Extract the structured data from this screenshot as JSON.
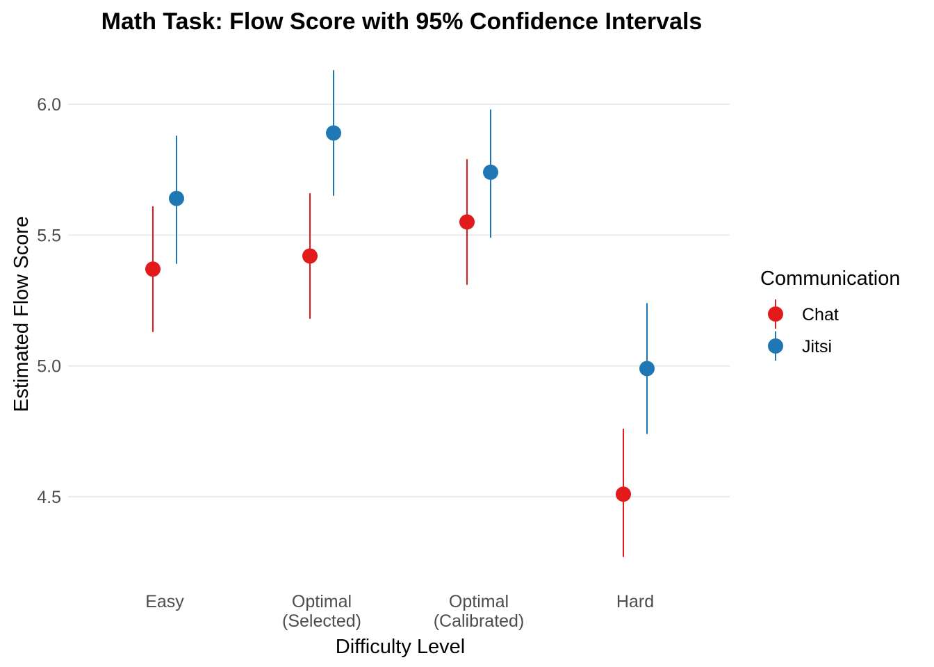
{
  "chart_data": {
    "type": "scatter",
    "title": "Math Task: Flow Score with 95% Confidence Intervals",
    "xlabel": "Difficulty Level",
    "ylabel": "Estimated Flow Score",
    "categories": [
      [
        "Easy"
      ],
      [
        "Optimal",
        "(Selected)"
      ],
      [
        "Optimal",
        "(Calibrated)"
      ],
      [
        "Hard"
      ]
    ],
    "y_ticks": [
      "4.5",
      "5.0",
      "5.5",
      "6.0"
    ],
    "ylim": [
      4.2,
      6.18
    ],
    "grid": true,
    "legend": {
      "title": "Communication",
      "position": "right"
    },
    "series": [
      {
        "name": "Chat",
        "color": "#e31a1c",
        "values": [
          5.37,
          5.42,
          5.55,
          4.51
        ],
        "lower": [
          5.13,
          5.18,
          5.31,
          4.27
        ],
        "upper": [
          5.61,
          5.66,
          5.79,
          4.76
        ]
      },
      {
        "name": "Jitsi",
        "color": "#1f78b4",
        "values": [
          5.64,
          5.89,
          5.74,
          4.99
        ],
        "lower": [
          5.39,
          5.65,
          5.49,
          4.74
        ],
        "upper": [
          5.88,
          6.13,
          5.98,
          5.24
        ]
      }
    ]
  }
}
